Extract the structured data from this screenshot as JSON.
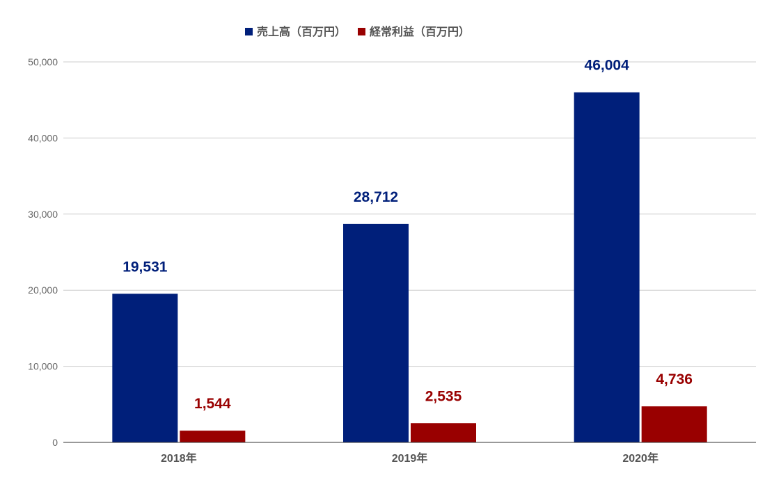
{
  "chart_data": {
    "type": "bar",
    "categories": [
      "2018年",
      "2019年",
      "2020年"
    ],
    "series": [
      {
        "name": "売上高（百万円）",
        "values": [
          19531,
          28712,
          46004
        ],
        "color": "#001f7a"
      },
      {
        "name": "経常利益（百万円）",
        "values": [
          1544,
          2535,
          4736
        ],
        "color": "#990000"
      }
    ],
    "data_labels": [
      [
        "19,531",
        "28,712",
        "46,004"
      ],
      [
        "1,544",
        "2,535",
        "4,736"
      ]
    ],
    "ylim": [
      0,
      50000
    ],
    "yticks": [
      0,
      10000,
      20000,
      30000,
      40000,
      50000
    ],
    "ytick_labels": [
      "0",
      "10,000",
      "20,000",
      "30,000",
      "40,000",
      "50,000"
    ],
    "grid": true,
    "legend_position": "top-center"
  }
}
